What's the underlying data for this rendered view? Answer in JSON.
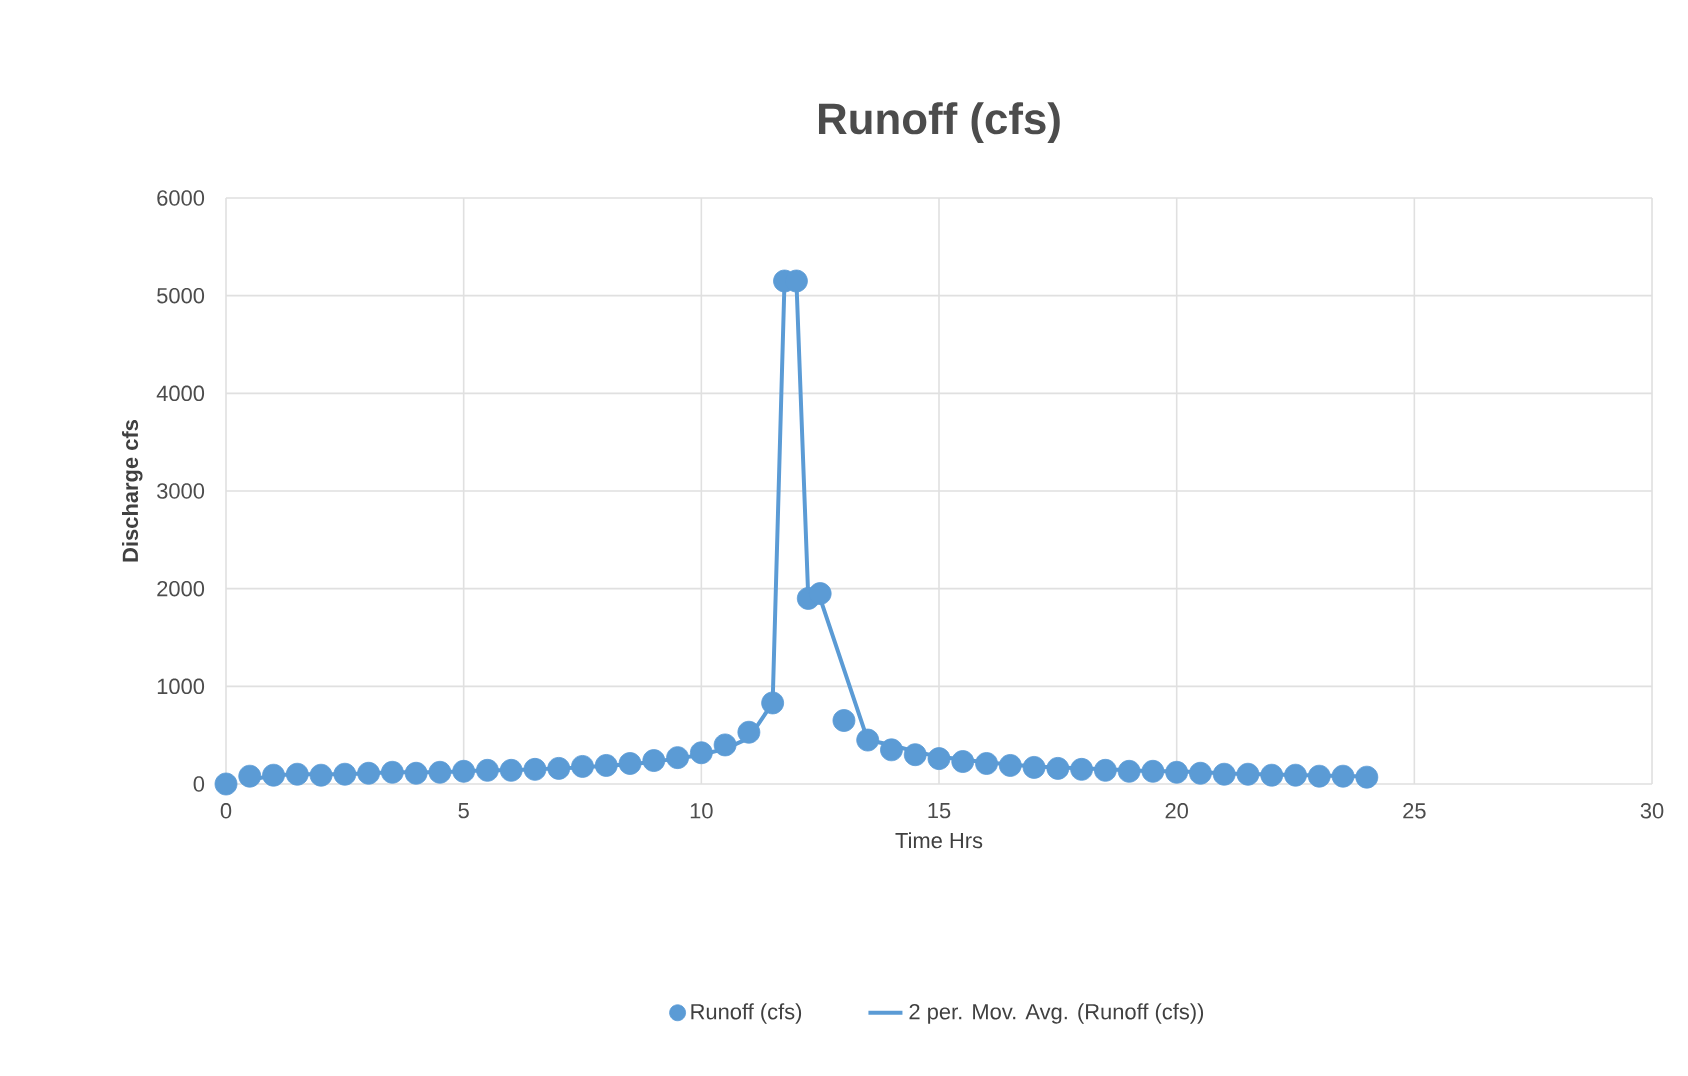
{
  "chart_data": {
    "type": "scatter",
    "title": "Runoff (cfs)",
    "xlabel": "Time Hrs",
    "ylabel": "Discharge cfs",
    "xlim": [
      0,
      30
    ],
    "xticks": [
      0,
      5,
      10,
      15,
      20,
      25,
      30
    ],
    "ylim": [
      0,
      6000
    ],
    "yticks": [
      0,
      1000,
      2000,
      3000,
      4000,
      5000,
      6000
    ],
    "grid": true,
    "legend": "bottom",
    "series": [
      {
        "name": "Runoff (cfs)",
        "type": "scatter",
        "marker": "circle",
        "color": "#5b9bd5",
        "x": [
          0,
          0.5,
          1,
          1.5,
          2,
          2.5,
          3,
          3.5,
          4,
          4.5,
          5,
          5.5,
          6,
          6.5,
          7,
          7.5,
          8,
          8.5,
          9,
          9.5,
          10,
          10.5,
          11,
          11.5,
          11.75,
          12,
          12.25,
          12.5,
          13,
          13.5,
          14,
          14.5,
          15,
          15.5,
          16,
          16.5,
          17,
          17.5,
          18,
          18.5,
          19,
          19.5,
          20,
          20.5,
          21,
          21.5,
          22,
          22.5,
          23,
          23.5,
          24
        ],
        "values": [
          0,
          80,
          90,
          100,
          90,
          100,
          110,
          120,
          110,
          120,
          130,
          140,
          140,
          150,
          160,
          180,
          190,
          210,
          240,
          270,
          320,
          400,
          530,
          830,
          5150,
          5150,
          1900,
          1950,
          650,
          450,
          350,
          300,
          260,
          230,
          210,
          190,
          170,
          160,
          150,
          140,
          130,
          130,
          120,
          110,
          100,
          100,
          90,
          90,
          80,
          80,
          70
        ]
      },
      {
        "name": "2 per. Mov. Avg. (Runoff (cfs))",
        "type": "line",
        "marker": "none",
        "line_style": "solid",
        "color": "#5b9bd5",
        "x": [
          0.5,
          1,
          1.5,
          2,
          2.5,
          3,
          3.5,
          4,
          4.5,
          5,
          5.5,
          6,
          6.5,
          7,
          7.5,
          8,
          8.5,
          9,
          9.5,
          10,
          10.5,
          11,
          11.5,
          11.75,
          12,
          12.25,
          12.5,
          13.5,
          14,
          14.5,
          15,
          15.5,
          16,
          16.5,
          17,
          17.5,
          18,
          18.5,
          19,
          19.5,
          20,
          20.5,
          21,
          21.5,
          22,
          22.5,
          23,
          23.5,
          24
        ],
        "values": [
          40,
          90,
          100,
          100,
          100,
          110,
          120,
          120,
          120,
          130,
          140,
          140,
          150,
          160,
          170,
          190,
          200,
          230,
          260,
          300,
          360,
          470,
          830,
          5150,
          5150,
          1900,
          1900,
          450,
          400,
          330,
          280,
          250,
          220,
          200,
          180,
          170,
          160,
          150,
          140,
          130,
          130,
          120,
          110,
          100,
          100,
          90,
          90,
          80,
          80
        ]
      }
    ]
  }
}
